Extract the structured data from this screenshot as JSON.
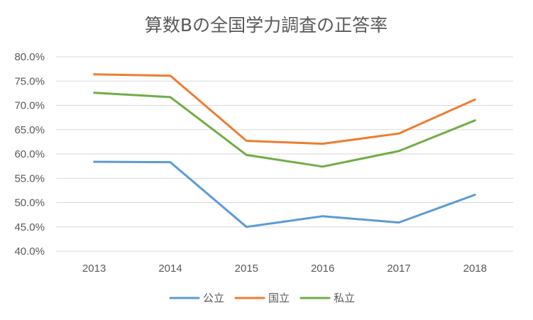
{
  "chart_data": {
    "type": "line",
    "title": "算数Bの全国学力調査の正答率",
    "xlabel": "",
    "ylabel": "",
    "categories": [
      "2013",
      "2014",
      "2015",
      "2016",
      "2017",
      "2018"
    ],
    "y_ticks": [
      "40.0%",
      "45.0%",
      "50.0%",
      "55.0%",
      "60.0%",
      "65.0%",
      "70.0%",
      "75.0%",
      "80.0%"
    ],
    "ylim": [
      40,
      80
    ],
    "y_unit": "%",
    "grid": true,
    "legend_position": "bottom",
    "series": [
      {
        "name": "公立",
        "color": "#5B9BD5",
        "values": [
          58.4,
          58.3,
          45.0,
          47.2,
          45.9,
          51.6
        ]
      },
      {
        "name": "国立",
        "color": "#ED7D31",
        "values": [
          76.4,
          76.1,
          62.7,
          62.1,
          64.2,
          71.2
        ]
      },
      {
        "name": "私立",
        "color": "#70AD47",
        "values": [
          72.6,
          71.7,
          59.8,
          57.4,
          60.6,
          66.9
        ]
      }
    ]
  }
}
